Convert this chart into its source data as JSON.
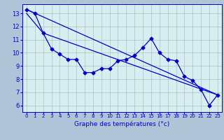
{
  "xlabel": "Graphe des températures (°c)",
  "background_color": "#b0c4d8",
  "plot_background": "#d8eef0",
  "line_color": "#0000cc",
  "marker": "D",
  "markersize": 2.5,
  "linewidth": 0.9,
  "ylim": [
    5.5,
    13.7
  ],
  "xlim": [
    -0.5,
    23.5
  ],
  "yticks": [
    6,
    7,
    8,
    9,
    10,
    11,
    12,
    13
  ],
  "xticks": [
    0,
    1,
    2,
    3,
    4,
    5,
    6,
    7,
    8,
    9,
    10,
    11,
    12,
    13,
    14,
    15,
    16,
    17,
    18,
    19,
    20,
    21,
    22,
    23
  ],
  "series1": [
    13.3,
    13.0,
    11.5,
    10.3,
    9.9,
    9.5,
    9.5,
    8.5,
    8.5,
    8.8,
    8.8,
    9.4,
    9.5,
    9.8,
    10.4,
    11.1,
    10.0,
    9.5,
    9.4,
    8.2,
    7.9,
    7.2,
    6.0,
    6.8
  ],
  "trend1_x": [
    0,
    23
  ],
  "trend1_y": [
    13.3,
    6.8
  ],
  "trend2_x": [
    0,
    2,
    23
  ],
  "trend2_y": [
    13.0,
    11.5,
    6.8
  ],
  "xlabel_fontsize": 6.5,
  "tick_fontsize_x": 5.0,
  "tick_fontsize_y": 6.0,
  "grid_color": "#a0b8b8",
  "grid_linewidth": 0.4
}
